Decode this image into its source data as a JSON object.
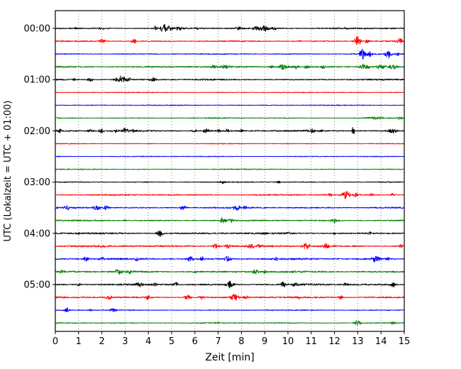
{
  "figure": {
    "background": "#ffffff",
    "frame_color": "#000000",
    "grid_color": "#6e6e6e"
  },
  "chart_data": {
    "type": "line",
    "title": "",
    "xlabel": "Zeit [min]",
    "ylabel": "UTC (Lokalzeit = UTC + 01:00)",
    "x_range": [
      0,
      15
    ],
    "x_ticks": [
      "0",
      "1",
      "2",
      "3",
      "4",
      "5",
      "6",
      "7",
      "8",
      "9",
      "10",
      "11",
      "12",
      "13",
      "14",
      "15"
    ],
    "grid": true,
    "legend_position": "none",
    "minutes_per_trace": 15,
    "hour_labels": [
      "00:00",
      "01:00",
      "02:00",
      "03:00",
      "04:00",
      "05:00"
    ],
    "trace_colors": [
      "#000000",
      "#ff0000",
      "#0000ff",
      "#008000"
    ],
    "traces": [
      {
        "time": "00:00",
        "label": "00:00",
        "color": "#000000",
        "noise": 0.8,
        "events": [
          [
            0.9,
            0.06,
            1.5
          ],
          [
            2.0,
            0.08,
            1.6
          ],
          [
            4.3,
            0.12,
            2.5
          ],
          [
            4.75,
            0.18,
            6
          ],
          [
            5.3,
            0.1,
            2.5
          ],
          [
            6.1,
            0.08,
            2
          ],
          [
            7.9,
            0.1,
            2.2
          ],
          [
            8.6,
            0.12,
            3
          ],
          [
            9.0,
            0.15,
            4.5
          ],
          [
            9.4,
            0.1,
            2.5
          ],
          [
            12.5,
            0.06,
            1.4
          ]
        ]
      },
      {
        "time": "00:15",
        "label": "",
        "color": "#ff0000",
        "noise": 0.6,
        "events": [
          [
            2.0,
            0.1,
            3.5
          ],
          [
            3.4,
            0.08,
            3.5
          ],
          [
            10.5,
            0.05,
            1.4
          ],
          [
            13.0,
            0.1,
            8
          ],
          [
            13.4,
            0.08,
            3
          ],
          [
            14.8,
            0.1,
            5
          ]
        ]
      },
      {
        "time": "00:30",
        "label": "",
        "color": "#0000ff",
        "noise": 0.6,
        "events": [
          [
            13.2,
            0.08,
            9
          ],
          [
            13.5,
            0.08,
            4
          ],
          [
            14.3,
            0.1,
            6
          ],
          [
            14.7,
            0.07,
            3
          ]
        ]
      },
      {
        "time": "00:45",
        "label": "",
        "color": "#008000",
        "noise": 0.85,
        "events": [
          [
            6.8,
            0.08,
            2.8
          ],
          [
            7.3,
            0.12,
            3.2
          ],
          [
            9.3,
            0.08,
            2.2
          ],
          [
            9.8,
            0.15,
            4.5
          ],
          [
            10.3,
            0.12,
            3
          ],
          [
            10.8,
            0.08,
            2.4
          ],
          [
            11.5,
            0.08,
            2
          ],
          [
            13.3,
            0.15,
            4
          ],
          [
            14.0,
            0.15,
            3.2
          ],
          [
            14.5,
            0.12,
            3.4
          ]
        ]
      },
      {
        "time": "01:00",
        "label": "01:00",
        "color": "#000000",
        "noise": 0.75,
        "events": [
          [
            0.8,
            0.05,
            1.4
          ],
          [
            1.5,
            0.1,
            2.4
          ],
          [
            2.8,
            0.16,
            5
          ],
          [
            3.15,
            0.08,
            3
          ],
          [
            4.2,
            0.1,
            2.6
          ],
          [
            6.5,
            0.05,
            1.2
          ]
        ]
      },
      {
        "time": "01:15",
        "label": "",
        "color": "#ff0000",
        "noise": 0.45,
        "events": []
      },
      {
        "time": "01:30",
        "label": "",
        "color": "#0000ff",
        "noise": 0.45,
        "events": []
      },
      {
        "time": "01:45",
        "label": "",
        "color": "#008000",
        "noise": 0.55,
        "events": [
          [
            13.8,
            0.25,
            1.8
          ],
          [
            14.8,
            0.12,
            1.8
          ]
        ]
      },
      {
        "time": "02:00",
        "label": "02:00",
        "color": "#000000",
        "noise": 0.85,
        "events": [
          [
            0.2,
            0.08,
            3
          ],
          [
            1.5,
            0.08,
            2.4
          ],
          [
            2.0,
            0.1,
            3
          ],
          [
            2.6,
            0.08,
            2.4
          ],
          [
            3.0,
            0.12,
            3.4
          ],
          [
            3.35,
            0.08,
            2.4
          ],
          [
            6.0,
            0.08,
            2.4
          ],
          [
            6.5,
            0.1,
            3
          ],
          [
            7.0,
            0.08,
            2.6
          ],
          [
            7.4,
            0.08,
            2.6
          ],
          [
            8.0,
            0.08,
            2
          ],
          [
            9.5,
            0.05,
            1.4
          ],
          [
            11.0,
            0.12,
            3.4
          ],
          [
            11.4,
            0.08,
            2
          ],
          [
            12.8,
            0.04,
            7
          ],
          [
            14.5,
            0.12,
            3.4
          ]
        ]
      },
      {
        "time": "02:15",
        "label": "",
        "color": "#ff0000",
        "noise": 0.45,
        "events": []
      },
      {
        "time": "02:30",
        "label": "",
        "color": "#0000ff",
        "noise": 0.45,
        "events": []
      },
      {
        "time": "02:45",
        "label": "",
        "color": "#008000",
        "noise": 0.5,
        "events": []
      },
      {
        "time": "03:00",
        "label": "03:00",
        "color": "#000000",
        "noise": 0.55,
        "events": [
          [
            4.0,
            0.05,
            1
          ],
          [
            7.2,
            0.08,
            2
          ],
          [
            9.6,
            0.07,
            2
          ]
        ]
      },
      {
        "time": "03:15",
        "label": "",
        "color": "#ff0000",
        "noise": 0.75,
        "events": [
          [
            11.8,
            0.08,
            2
          ],
          [
            12.5,
            0.12,
            6
          ],
          [
            12.9,
            0.08,
            3
          ],
          [
            13.6,
            0.08,
            2.4
          ],
          [
            14.5,
            0.08,
            2
          ]
        ]
      },
      {
        "time": "03:30",
        "label": "",
        "color": "#0000ff",
        "noise": 0.75,
        "events": [
          [
            0.5,
            0.08,
            3
          ],
          [
            1.8,
            0.12,
            3.4
          ],
          [
            2.2,
            0.1,
            3
          ],
          [
            5.5,
            0.1,
            3.4
          ],
          [
            7.8,
            0.1,
            4.5
          ],
          [
            8.15,
            0.07,
            2.5
          ]
        ]
      },
      {
        "time": "03:45",
        "label": "",
        "color": "#008000",
        "noise": 0.75,
        "events": [
          [
            3.0,
            0.05,
            1.4
          ],
          [
            7.2,
            0.1,
            5
          ],
          [
            7.55,
            0.07,
            2.5
          ],
          [
            12.0,
            0.1,
            3.4
          ]
        ]
      },
      {
        "time": "04:00",
        "label": "04:00",
        "color": "#000000",
        "noise": 0.9,
        "events": [
          [
            1.0,
            0.05,
            1.2
          ],
          [
            4.5,
            0.1,
            5
          ],
          [
            9.0,
            0.08,
            2.6
          ],
          [
            10.0,
            0.07,
            2
          ],
          [
            12.0,
            0.05,
            1.5
          ],
          [
            13.5,
            0.07,
            2
          ]
        ]
      },
      {
        "time": "04:15",
        "label": "",
        "color": "#ff0000",
        "noise": 0.95,
        "events": [
          [
            2.0,
            0.08,
            2
          ],
          [
            6.9,
            0.1,
            4
          ],
          [
            7.4,
            0.08,
            3
          ],
          [
            8.4,
            0.1,
            4
          ],
          [
            8.8,
            0.07,
            2.5
          ],
          [
            10.8,
            0.12,
            4
          ],
          [
            11.6,
            0.1,
            3.5
          ],
          [
            14.9,
            0.08,
            2.5
          ]
        ]
      },
      {
        "time": "04:30",
        "label": "",
        "color": "#0000ff",
        "noise": 0.95,
        "events": [
          [
            1.3,
            0.1,
            3.5
          ],
          [
            2.0,
            0.08,
            2.5
          ],
          [
            3.5,
            0.07,
            2
          ],
          [
            5.8,
            0.1,
            4
          ],
          [
            6.3,
            0.08,
            3
          ],
          [
            7.4,
            0.1,
            4
          ],
          [
            9.5,
            0.07,
            2
          ],
          [
            13.8,
            0.12,
            5
          ],
          [
            14.3,
            0.08,
            2.5
          ]
        ]
      },
      {
        "time": "04:45",
        "label": "",
        "color": "#008000",
        "noise": 0.95,
        "events": [
          [
            0.3,
            0.08,
            3
          ],
          [
            2.7,
            0.1,
            3.5
          ],
          [
            3.2,
            0.08,
            3
          ],
          [
            6.0,
            0.07,
            2
          ],
          [
            8.6,
            0.1,
            3.5
          ],
          [
            9.0,
            0.08,
            3
          ],
          [
            11.5,
            0.05,
            1.5
          ]
        ]
      },
      {
        "time": "05:00",
        "label": "05:00",
        "color": "#000000",
        "noise": 0.95,
        "events": [
          [
            1.0,
            0.07,
            2
          ],
          [
            3.6,
            0.1,
            3.5
          ],
          [
            4.3,
            0.08,
            3
          ],
          [
            5.2,
            0.08,
            3
          ],
          [
            7.5,
            0.12,
            5.5
          ],
          [
            9.8,
            0.12,
            3.5
          ],
          [
            10.3,
            0.08,
            2.5
          ],
          [
            12.5,
            0.08,
            3
          ],
          [
            14.5,
            0.1,
            3.5
          ]
        ]
      },
      {
        "time": "05:15",
        "label": "",
        "color": "#ff0000",
        "noise": 0.85,
        "events": [
          [
            2.3,
            0.1,
            3.5
          ],
          [
            4.0,
            0.08,
            3
          ],
          [
            5.7,
            0.1,
            3.5
          ],
          [
            6.3,
            0.08,
            3
          ],
          [
            7.7,
            0.12,
            5
          ],
          [
            8.2,
            0.08,
            3
          ],
          [
            10.5,
            0.07,
            2
          ],
          [
            12.3,
            0.08,
            3
          ]
        ]
      },
      {
        "time": "05:30",
        "label": "",
        "color": "#0000ff",
        "noise": 0.55,
        "events": [
          [
            0.5,
            0.08,
            3.5
          ],
          [
            1.5,
            0.05,
            1.5
          ],
          [
            2.5,
            0.1,
            3
          ]
        ]
      },
      {
        "time": "05:45",
        "label": "",
        "color": "#008000",
        "noise": 0.55,
        "events": [
          [
            7.0,
            0.04,
            1
          ],
          [
            13.0,
            0.1,
            4
          ],
          [
            14.5,
            0.08,
            2
          ]
        ]
      }
    ]
  }
}
